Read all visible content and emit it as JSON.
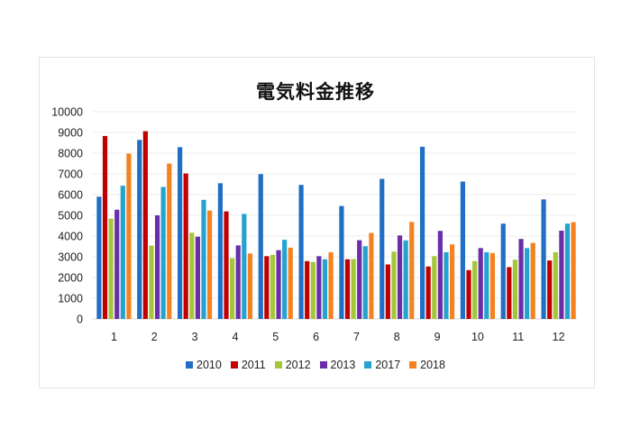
{
  "chart_data": {
    "type": "bar",
    "title": "電気料金推移",
    "xlabel": "",
    "ylabel": "",
    "ylim": [
      0,
      10000
    ],
    "yticks": [
      0,
      1000,
      2000,
      3000,
      4000,
      5000,
      6000,
      7000,
      8000,
      9000,
      10000
    ],
    "grid": true,
    "legend_position": "bottom",
    "categories": [
      "1",
      "2",
      "3",
      "4",
      "5",
      "6",
      "7",
      "8",
      "9",
      "10",
      "11",
      "12"
    ],
    "series": [
      {
        "name": "2010",
        "color": "#1f6fc5",
        "values": [
          5900,
          8640,
          8290,
          6550,
          6990,
          6470,
          5450,
          6760,
          8310,
          6630,
          4600,
          5770
        ]
      },
      {
        "name": "2011",
        "color": "#c00000",
        "values": [
          8830,
          9060,
          7020,
          5190,
          3030,
          2790,
          2880,
          2630,
          2530,
          2360,
          2500,
          2820
        ]
      },
      {
        "name": "2012",
        "color": "#a4c639",
        "values": [
          4840,
          3540,
          4160,
          2930,
          3090,
          2750,
          2890,
          3250,
          3030,
          2790,
          2860,
          3220
        ]
      },
      {
        "name": "2013",
        "color": "#6a2fa8",
        "values": [
          5270,
          5000,
          3970,
          3550,
          3320,
          3030,
          3800,
          4030,
          4250,
          3420,
          3860,
          4260
        ]
      },
      {
        "name": "2017",
        "color": "#25a3cf",
        "values": [
          6430,
          6370,
          5750,
          5070,
          3820,
          2880,
          3510,
          3790,
          3220,
          3220,
          3420,
          4600
        ]
      },
      {
        "name": "2018",
        "color": "#f58220",
        "values": [
          7980,
          7500,
          5230,
          3160,
          3440,
          3220,
          4150,
          4680,
          3600,
          3180,
          3670,
          4670
        ]
      }
    ]
  }
}
